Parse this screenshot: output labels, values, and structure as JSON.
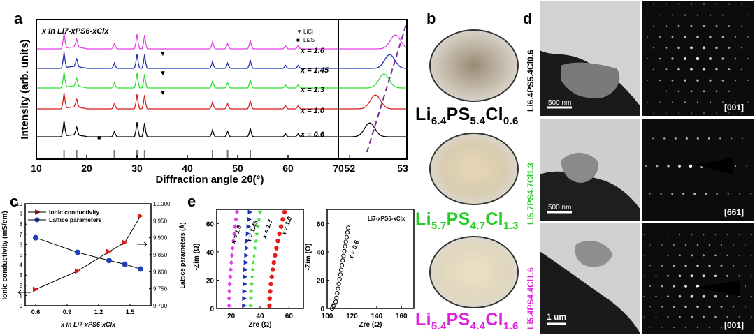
{
  "panels": {
    "a": "a",
    "b": "b",
    "c": "c",
    "d": "d",
    "e": "e"
  },
  "panel_a": {
    "x_axis_label": "Diffraction angle 2θ(°)",
    "y_axis_label": "Intensity (arb. units)",
    "composition_label": "x in Li7-xPS6-xClx",
    "legend": [
      {
        "symbol": "▼",
        "label": "LiCl"
      },
      {
        "symbol": "■",
        "label": "Li2S"
      }
    ],
    "x_ticks_main": [
      "10",
      "20",
      "30",
      "40",
      "50",
      "60",
      "70"
    ],
    "x_ticks_zoom": [
      "52",
      "53"
    ],
    "curve_labels": [
      "x = 1.6",
      "x = 1.45",
      "x = 1.3",
      "x = 1.0",
      "x = 0.6"
    ],
    "colors": [
      "#e33fe6",
      "#1f2fb5",
      "#2ee02e",
      "#d81b1b",
      "#000000"
    ]
  },
  "panel_b": {
    "formulas": [
      {
        "main": "Li",
        "s1": "6.4",
        "m2": "PS",
        "s2": "5.4",
        "m3": "Cl",
        "s3": "0.6",
        "color": "#000000"
      },
      {
        "main": "Li",
        "s1": "5.7",
        "m2": "PS",
        "s2": "4.7",
        "m3": "Cl",
        "s3": "1.3",
        "color": "#22cc22"
      },
      {
        "main": "Li",
        "s1": "5.4",
        "m2": "PS",
        "s2": "4.4",
        "m3": "Cl",
        "s3": "1.6",
        "color": "#dd22dd"
      }
    ]
  },
  "panel_c": {
    "legend": [
      "Ionic conductivity",
      "Lattice parameters"
    ],
    "y_left_label": "Ionic conductivity (mS/cm)",
    "y_right_label": "Lattice parameters (Å)",
    "x_label": "x in Li7-xPS6-xClx",
    "x_ticks": [
      "0.6",
      "0.9",
      "1.2",
      "1.5"
    ],
    "y_left_ticks": [
      "0",
      "1",
      "2",
      "3",
      "4",
      "5",
      "6",
      "7",
      "8",
      "9",
      "10"
    ],
    "y_right_ticks": [
      "9.700",
      "9.750",
      "9.800",
      "9.850",
      "9.900",
      "9.950",
      "10.000"
    ]
  },
  "panel_e": {
    "left": {
      "y_label": "-Zim (Ω)",
      "x_label": "Zre (Ω)",
      "x_ticks": [
        "20",
        "40",
        "60"
      ],
      "y_ticks": [
        "0",
        "20",
        "40",
        "60"
      ],
      "curve_labels": [
        "x = 1.6",
        "x = 1.45",
        "x = 1.3",
        "x = 1.0"
      ]
    },
    "right": {
      "y_label": "-Zim (Ω)",
      "x_label": "Zre (Ω)",
      "x_ticks": [
        "100",
        "120",
        "140",
        "160"
      ],
      "y_ticks": [
        "0",
        "20",
        "40",
        "60"
      ],
      "title": "Li7-xPS6-xClx",
      "curve_label": "x = 0.6"
    }
  },
  "panel_d": {
    "rows": [
      {
        "formula": "Li6.4PS5.4Cl0.6",
        "color": "#000000",
        "scale": "500 nm",
        "zone": "[001]"
      },
      {
        "formula": "Li5.7PS4.7Cl1.3",
        "color": "#22cc22",
        "scale": "500 nm",
        "zone": "[661]"
      },
      {
        "formula": "Li5.4PS4.4Cl1.6",
        "color": "#dd22dd",
        "scale": "1 um",
        "zone": "[001]"
      }
    ]
  },
  "chart_data": [
    {
      "type": "line",
      "panel": "a",
      "xlabel": "Diffraction angle 2θ(°)",
      "ylabel": "Intensity (arb. units)",
      "xlim": [
        10,
        70
      ],
      "zoom_xlim": [
        51.8,
        53
      ],
      "series": [
        {
          "name": "x = 1.6",
          "peaks": [
            15.5,
            18.0,
            25.5,
            30.0,
            31.5,
            45.0,
            48.0,
            52.5,
            59.5,
            62.0
          ]
        },
        {
          "name": "x = 1.45",
          "peaks": [
            15.5,
            18.0,
            25.5,
            30.0,
            31.5,
            45.0,
            48.0,
            52.5,
            59.5,
            62.0
          ]
        },
        {
          "name": "x = 1.3",
          "peaks": [
            15.5,
            18.0,
            25.5,
            30.0,
            31.5,
            45.0,
            48.0,
            52.5,
            59.5,
            62.0
          ]
        },
        {
          "name": "x = 1.0",
          "peaks": [
            15.5,
            18.0,
            25.5,
            30.0,
            31.5,
            45.0,
            48.0,
            52.5,
            59.5,
            62.0
          ]
        },
        {
          "name": "x = 0.6",
          "peaks": [
            15.5,
            18.0,
            25.5,
            30.0,
            31.5,
            45.0,
            48.0,
            52.5,
            59.5,
            62.0
          ]
        }
      ],
      "zoom_peak_positions": [
        52.8,
        52.7,
        52.6,
        52.45,
        52.35
      ],
      "reference_ticks": [
        15.5,
        18.0,
        25.5,
        30.0,
        31.5,
        45.0,
        48.0,
        52.5
      ]
    },
    {
      "type": "line",
      "panel": "c",
      "xlabel": "x in Li7-xPS6-xClx",
      "ylabel": "Ionic conductivity (mS/cm)",
      "ylim": [
        0,
        10
      ],
      "y2lim": [
        9.7,
        10.0
      ],
      "x": [
        0.6,
        1.0,
        1.3,
        1.45,
        1.6
      ],
      "series": [
        {
          "name": "Ionic conductivity",
          "axis": "left",
          "values": [
            1.6,
            3.4,
            5.3,
            6.2,
            8.8
          ]
        },
        {
          "name": "Lattice parameters",
          "axis": "right",
          "values": [
            9.9,
            9.857,
            9.833,
            9.822,
            9.808
          ]
        }
      ]
    },
    {
      "type": "scatter",
      "panel": "e-left",
      "xlabel": "Zre (Ω)",
      "ylabel": "-Zim (Ω)",
      "xlim": [
        10,
        70
      ],
      "ylim": [
        0,
        70
      ],
      "series": [
        {
          "name": "x = 1.6",
          "x0": 18.5,
          "x1": 24.0
        },
        {
          "name": "x = 1.45",
          "x0": 29.0,
          "x1": 33.0
        },
        {
          "name": "x = 1.3",
          "x0": 33.5,
          "x1": 40.0
        },
        {
          "name": "x = 1.0",
          "x0": 46.5,
          "x1": 57.0
        }
      ]
    },
    {
      "type": "scatter",
      "panel": "e-right",
      "xlabel": "Zre (Ω)",
      "ylabel": "-Zim (Ω)",
      "xlim": [
        100,
        170
      ],
      "ylim": [
        0,
        70
      ],
      "series": [
        {
          "name": "x = 0.6",
          "x0": 104.0,
          "x1": 117.0
        }
      ]
    }
  ]
}
